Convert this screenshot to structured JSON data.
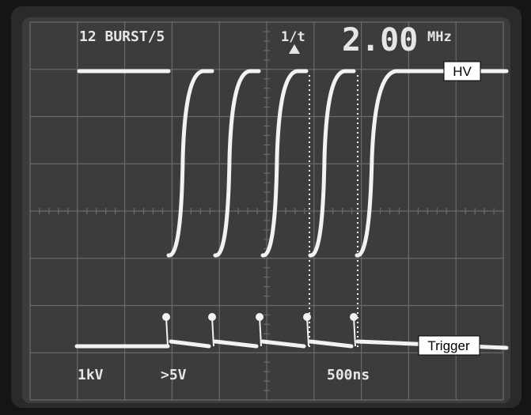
{
  "screen": {
    "mode": "12 BURST/5",
    "measure": "1/t",
    "frequency": "2.00",
    "frequency_unit": "MHz",
    "ch1_scale": "1kV",
    "ch2_scale": ">5V",
    "time_scale": "500ns"
  },
  "labels": {
    "hv": "HV",
    "trigger": "Trigger"
  }
}
